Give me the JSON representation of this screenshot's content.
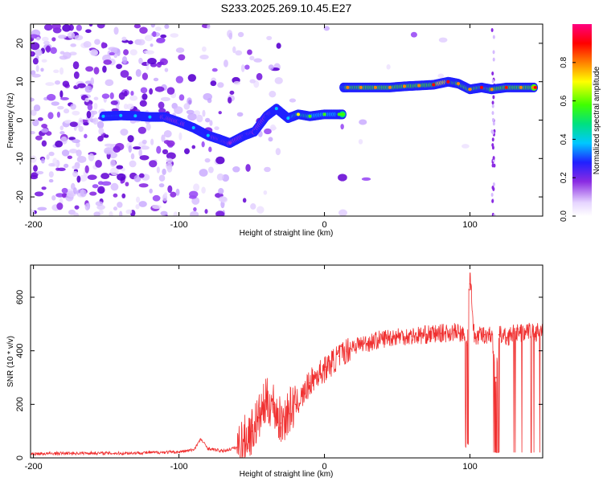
{
  "page_title": "S233.2025.269.10.45.E27",
  "chart_data": [
    {
      "type": "heatmap",
      "title": "S233.2025.269.10.45.E27",
      "xlabel": "Height of straight line (km)",
      "ylabel": "Frequency (Hz)",
      "xlim": [
        -202,
        150
      ],
      "ylim": [
        -25,
        25
      ],
      "xticks": [
        -200,
        -100,
        0,
        100
      ],
      "yticks": [
        -20,
        -10,
        0,
        10,
        20
      ],
      "colorbar": {
        "label": "Normalized spectral amplitude",
        "range": [
          0.0,
          1.0
        ],
        "ticks": [
          "0.0",
          "0.2",
          "0.4",
          "0.6",
          "0.8"
        ],
        "colormap": [
          "#ffffff",
          "#e6d5ff",
          "#8a2be2",
          "#2020ff",
          "#00c8ff",
          "#00e080",
          "#40ff00",
          "#ffff00",
          "#ff8000",
          "#ff0000",
          "#ff0080"
        ]
      },
      "ridge": [
        {
          "x": -152,
          "y": 1.0,
          "amp": 0.38
        },
        {
          "x": -140,
          "y": 1.2,
          "amp": 0.36
        },
        {
          "x": -130,
          "y": 1.1,
          "amp": 0.37
        },
        {
          "x": -120,
          "y": 0.8,
          "amp": 0.35
        },
        {
          "x": -110,
          "y": 0.8,
          "amp": 0.33
        },
        {
          "x": -100,
          "y": -0.5,
          "amp": 0.3
        },
        {
          "x": -90,
          "y": -2.0,
          "amp": 0.36
        },
        {
          "x": -80,
          "y": -4.0,
          "amp": 0.4
        },
        {
          "x": -72,
          "y": -5.0,
          "amp": 0.25
        },
        {
          "x": -65,
          "y": -6.0,
          "amp": 0.22
        },
        {
          "x": -55,
          "y": -4.0,
          "amp": 0.3
        },
        {
          "x": -48,
          "y": -3.0,
          "amp": 0.28
        },
        {
          "x": -40,
          "y": 1.0,
          "amp": 0.3
        },
        {
          "x": -33,
          "y": 3.0,
          "amp": 0.35
        },
        {
          "x": -25,
          "y": 0.5,
          "amp": 0.4
        },
        {
          "x": -18,
          "y": 1.5,
          "amp": 0.65
        },
        {
          "x": -10,
          "y": 1.0,
          "amp": 0.6
        },
        {
          "x": 0,
          "y": 1.5,
          "amp": 0.55
        },
        {
          "x": 10,
          "y": 1.5,
          "amp": 0.55
        },
        {
          "x": 16,
          "y": 8.5,
          "amp": 0.75
        },
        {
          "x": 25,
          "y": 8.5,
          "amp": 0.8
        },
        {
          "x": 35,
          "y": 8.5,
          "amp": 0.82
        },
        {
          "x": 45,
          "y": 8.5,
          "amp": 0.8
        },
        {
          "x": 55,
          "y": 8.8,
          "amp": 0.78
        },
        {
          "x": 65,
          "y": 9.0,
          "amp": 0.82
        },
        {
          "x": 75,
          "y": 9.2,
          "amp": 0.85
        },
        {
          "x": 85,
          "y": 10.0,
          "amp": 0.9
        },
        {
          "x": 92,
          "y": 9.5,
          "amp": 0.8
        },
        {
          "x": 100,
          "y": 8.0,
          "amp": 0.78
        },
        {
          "x": 108,
          "y": 8.5,
          "amp": 0.85
        },
        {
          "x": 115,
          "y": 8.0,
          "amp": 0.8
        },
        {
          "x": 125,
          "y": 8.5,
          "amp": 0.85
        },
        {
          "x": 135,
          "y": 8.5,
          "amp": 0.8
        },
        {
          "x": 145,
          "y": 8.5,
          "amp": 0.85
        }
      ]
    },
    {
      "type": "line",
      "xlabel": "Height of straight line (km)",
      "ylabel": "SNR (10 * v/v)",
      "xlim": [
        -202,
        150
      ],
      "ylim": [
        0,
        720
      ],
      "xticks": [
        -200,
        -100,
        0,
        100
      ],
      "yticks": [
        0,
        200,
        400,
        600
      ],
      "color": "#f03030",
      "series": [
        {
          "x": [
            -200,
            -180,
            -160,
            -140,
            -120,
            -100,
            -90,
            -85,
            -80,
            -70,
            -60,
            -50,
            -45,
            -40,
            -35,
            -30,
            -25,
            -20,
            -15,
            -10,
            -5,
            0,
            10,
            20,
            30,
            40,
            50,
            60,
            70,
            80,
            90,
            95,
            98,
            100,
            103,
            110,
            115,
            118,
            120,
            125,
            130,
            140,
            150
          ],
          "y": [
            15,
            17,
            18,
            17,
            20,
            22,
            30,
            70,
            35,
            25,
            40,
            100,
            150,
            210,
            200,
            130,
            170,
            200,
            230,
            280,
            310,
            330,
            380,
            420,
            430,
            445,
            455,
            455,
            460,
            465,
            470,
            460,
            420,
            650,
            450,
            460,
            460,
            300,
            460,
            450,
            465,
            470,
            470
          ]
        }
      ]
    }
  ]
}
